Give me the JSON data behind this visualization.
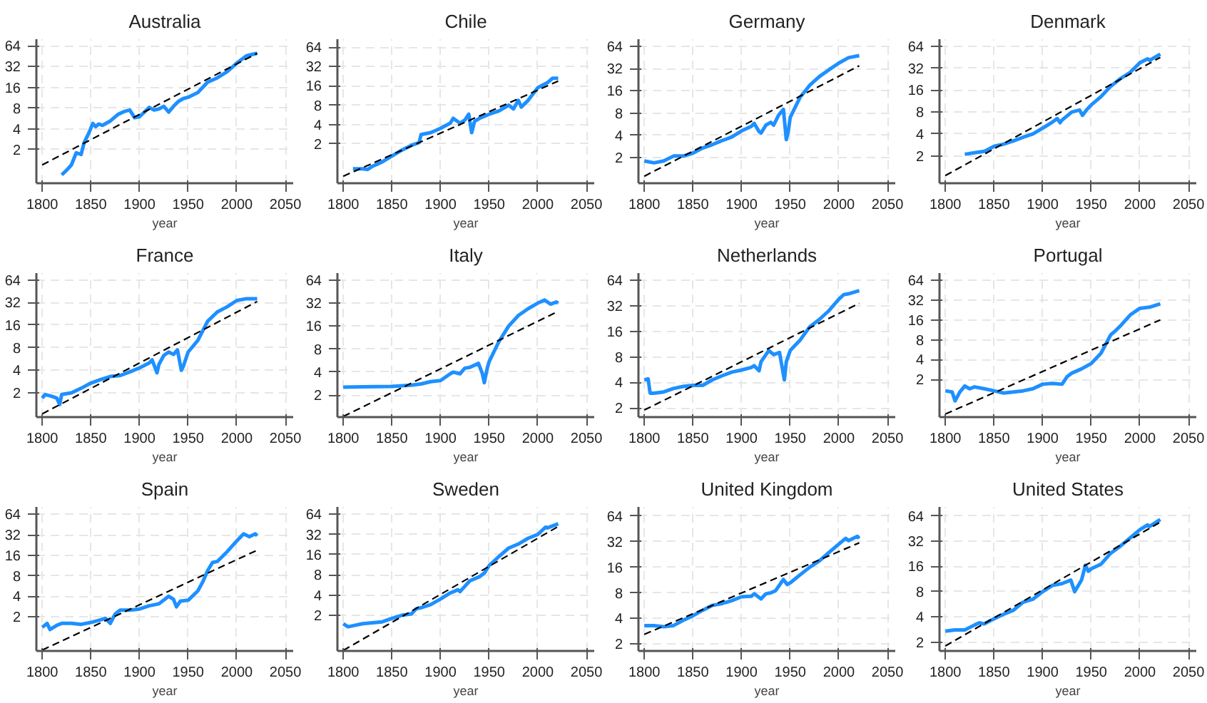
{
  "chart_data": [
    {
      "type": "line",
      "title": "Australia",
      "xlabel": "year",
      "xlim": [
        1794,
        2058
      ],
      "ylim": [
        0.65,
        80
      ],
      "xticks": [
        1800,
        1850,
        1900,
        1950,
        2000,
        2050
      ],
      "yticks": [
        2,
        4,
        8,
        16,
        32,
        64
      ],
      "log": "y",
      "grid": true,
      "series": [
        {
          "color": "#1e90ff",
          "x": [
            1820,
            1825,
            1830,
            1835,
            1840,
            1843,
            1848,
            1852,
            1855,
            1858,
            1862,
            1870,
            1878,
            1885,
            1890,
            1895,
            1900,
            1905,
            1910,
            1915,
            1920,
            1925,
            1930,
            1935,
            1940,
            1945,
            1950,
            1960,
            1970,
            1980,
            1990,
            2000,
            2010,
            2021
          ],
          "values": [
            0.86,
            1.0,
            1.2,
            1.8,
            1.7,
            2.5,
            3.5,
            4.8,
            4.3,
            4.7,
            4.5,
            5.2,
            6.5,
            7.2,
            7.5,
            5.8,
            6.0,
            7.0,
            8.2,
            7.5,
            7.8,
            8.5,
            7.0,
            8.5,
            10,
            11,
            11.5,
            13.5,
            19,
            22,
            27,
            36,
            46,
            50
          ]
        },
        {
          "color": "#000000",
          "line_style": "dashed",
          "x": [
            1800,
            2021
          ],
          "values": [
            1.2,
            50
          ]
        }
      ]
    },
    {
      "type": "line",
      "title": "Chile",
      "xlabel": "year",
      "xlim": [
        1794,
        2058
      ],
      "ylim": [
        0.49,
        85
      ],
      "xticks": [
        1800,
        1850,
        1900,
        1950,
        2000,
        2050
      ],
      "yticks": [
        2,
        4,
        8,
        16,
        32,
        64
      ],
      "log": "y",
      "grid": true,
      "series": [
        {
          "color": "#1e90ff",
          "x": [
            1810,
            1820,
            1825,
            1830,
            1840,
            1850,
            1860,
            1870,
            1878,
            1880,
            1890,
            1900,
            1910,
            1913,
            1920,
            1925,
            1929,
            1932,
            1935,
            1940,
            1950,
            1960,
            1970,
            1975,
            1980,
            1983,
            1990,
            2000,
            2010,
            2015,
            2021
          ],
          "values": [
            0.82,
            0.82,
            0.8,
            0.9,
            1.05,
            1.3,
            1.6,
            1.9,
            2.1,
            2.8,
            3.0,
            3.5,
            4.2,
            5.0,
            4.2,
            4.7,
            5.8,
            3.0,
            4.5,
            5.0,
            5.8,
            6.5,
            8.0,
            7.0,
            9.5,
            7.5,
            9.5,
            15,
            18,
            21,
            21
          ]
        },
        {
          "color": "#000000",
          "line_style": "dashed",
          "x": [
            1800,
            2021
          ],
          "values": [
            0.63,
            19
          ]
        }
      ]
    },
    {
      "type": "line",
      "title": "Germany",
      "xlabel": "year",
      "xlim": [
        1794,
        2058
      ],
      "ylim": [
        0.9,
        80
      ],
      "xticks": [
        1800,
        1850,
        1900,
        1950,
        2000,
        2050
      ],
      "yticks": [
        2,
        4,
        8,
        16,
        32,
        64
      ],
      "log": "y",
      "grid": true,
      "series": [
        {
          "color": "#1e90ff",
          "x": [
            1800,
            1810,
            1820,
            1830,
            1840,
            1850,
            1860,
            1870,
            1880,
            1890,
            1900,
            1910,
            1913,
            1918,
            1920,
            1925,
            1930,
            1933,
            1938,
            1943,
            1946,
            1948,
            1950,
            1960,
            1970,
            1980,
            1990,
            2000,
            2010,
            2021
          ],
          "values": [
            1.8,
            1.7,
            1.8,
            2.1,
            2.1,
            2.3,
            2.7,
            3.0,
            3.4,
            3.8,
            4.6,
            5.3,
            5.8,
            4.5,
            4.3,
            5.5,
            6.0,
            5.5,
            7.5,
            9.0,
            3.5,
            4.5,
            7.0,
            13,
            19,
            25,
            31,
            38,
            45,
            48
          ]
        },
        {
          "color": "#000000",
          "line_style": "dashed",
          "x": [
            1800,
            2021
          ],
          "values": [
            1.12,
            35
          ]
        }
      ]
    },
    {
      "type": "line",
      "title": "Denmark",
      "xlabel": "year",
      "xlim": [
        1794,
        2058
      ],
      "ylim": [
        0.84,
        80
      ],
      "xticks": [
        1800,
        1850,
        1900,
        1950,
        2000,
        2050
      ],
      "yticks": [
        2,
        4,
        8,
        16,
        32,
        64
      ],
      "log": "y",
      "grid": true,
      "series": [
        {
          "color": "#1e90ff",
          "x": [
            1820,
            1830,
            1840,
            1850,
            1860,
            1870,
            1880,
            1890,
            1900,
            1910,
            1915,
            1918,
            1920,
            1930,
            1938,
            1941,
            1945,
            1950,
            1960,
            1970,
            1980,
            1990,
            2000,
            2008,
            2010,
            2021
          ],
          "values": [
            2.1,
            2.2,
            2.3,
            2.7,
            2.9,
            3.2,
            3.6,
            4.0,
            4.8,
            5.8,
            6.5,
            5.7,
            6.2,
            8.0,
            8.5,
            7.2,
            8.5,
            10,
            13,
            18,
            23,
            28,
            38,
            43,
            41,
            50
          ]
        },
        {
          "color": "#000000",
          "line_style": "dashed",
          "x": [
            1800,
            2021
          ],
          "values": [
            1.07,
            45
          ]
        }
      ]
    },
    {
      "type": "line",
      "title": "France",
      "xlabel": "year",
      "xlim": [
        1794,
        2058
      ],
      "ylim": [
        0.95,
        79
      ],
      "xticks": [
        1800,
        1850,
        1900,
        1950,
        2000,
        2050
      ],
      "yticks": [
        2,
        4,
        8,
        16,
        32,
        64
      ],
      "log": "y",
      "grid": true,
      "series": [
        {
          "color": "#1e90ff",
          "x": [
            1800,
            1803,
            1810,
            1815,
            1818,
            1820,
            1830,
            1840,
            1850,
            1860,
            1870,
            1880,
            1890,
            1900,
            1910,
            1913,
            1918,
            1920,
            1925,
            1930,
            1935,
            1939,
            1943,
            1945,
            1950,
            1960,
            1970,
            1980,
            1990,
            2000,
            2010,
            2021
          ],
          "values": [
            1.7,
            1.9,
            1.8,
            1.7,
            1.4,
            1.9,
            2.0,
            2.3,
            2.7,
            3.0,
            3.3,
            3.4,
            3.8,
            4.3,
            5.0,
            5.5,
            3.7,
            4.8,
            6.3,
            7.0,
            6.5,
            7.5,
            4.0,
            4.5,
            7.0,
            10,
            18,
            24,
            28,
            34,
            36,
            36
          ]
        },
        {
          "color": "#000000",
          "line_style": "dashed",
          "x": [
            1800,
            2021
          ],
          "values": [
            1.05,
            33
          ]
        }
      ]
    },
    {
      "type": "line",
      "title": "Italy",
      "xlabel": "year",
      "xlim": [
        1794,
        2058
      ],
      "ylim": [
        1.03,
        79
      ],
      "xticks": [
        1800,
        1850,
        1900,
        1950,
        2000,
        2050
      ],
      "yticks": [
        2,
        4,
        8,
        16,
        32,
        64
      ],
      "log": "y",
      "grid": true,
      "series": [
        {
          "color": "#1e90ff",
          "x": [
            1800,
            1850,
            1870,
            1880,
            1890,
            1900,
            1910,
            1913,
            1920,
            1925,
            1930,
            1939,
            1943,
            1945,
            1948,
            1950,
            1960,
            1970,
            1980,
            1990,
            2000,
            2007,
            2013,
            2019,
            2021
          ],
          "values": [
            2.54,
            2.6,
            2.7,
            2.8,
            3.0,
            3.1,
            3.8,
            4.0,
            3.8,
            4.5,
            4.6,
            5.2,
            3.8,
            2.9,
            4.5,
            5.5,
            10,
            16,
            22,
            27,
            32,
            35,
            31,
            33,
            32
          ]
        },
        {
          "color": "#000000",
          "line_style": "dashed",
          "x": [
            1800,
            2021
          ],
          "values": [
            1.05,
            25
          ]
        }
      ]
    },
    {
      "type": "line",
      "title": "Netherlands",
      "xlabel": "year",
      "xlim": [
        1794,
        2058
      ],
      "ylim": [
        1.57,
        77
      ],
      "xticks": [
        1800,
        1850,
        1900,
        1950,
        2000,
        2050
      ],
      "yticks": [
        2,
        4,
        8,
        16,
        32,
        64
      ],
      "log": "y",
      "grid": true,
      "series": [
        {
          "color": "#1e90ff",
          "x": [
            1800,
            1804,
            1806,
            1810,
            1820,
            1830,
            1840,
            1850,
            1860,
            1870,
            1880,
            1890,
            1900,
            1910,
            1913,
            1918,
            1920,
            1928,
            1933,
            1939,
            1944,
            1946,
            1950,
            1960,
            1970,
            1980,
            1990,
            2000,
            2005,
            2010,
            2021
          ],
          "values": [
            4.3,
            4.4,
            3.0,
            3.0,
            3.1,
            3.4,
            3.6,
            3.7,
            3.7,
            4.3,
            4.8,
            5.3,
            5.6,
            6.0,
            6.3,
            5.5,
            7.0,
            9.5,
            8.5,
            9.0,
            4.3,
            7.0,
            9.5,
            12.5,
            18,
            22,
            28,
            38,
            43,
            44,
            48
          ]
        },
        {
          "color": "#000000",
          "line_style": "dashed",
          "x": [
            1800,
            2021
          ],
          "values": [
            1.9,
            34
          ]
        }
      ]
    },
    {
      "type": "line",
      "title": "Portugal",
      "xlabel": "year",
      "xlim": [
        1794,
        2058
      ],
      "ylim": [
        0.54,
        82
      ],
      "xticks": [
        1800,
        1850,
        1900,
        1950,
        2000,
        2050
      ],
      "yticks": [
        2,
        4,
        8,
        16,
        32,
        64
      ],
      "log": "y",
      "grid": true,
      "series": [
        {
          "color": "#1e90ff",
          "x": [
            1800,
            1807,
            1810,
            1815,
            1820,
            1825,
            1830,
            1840,
            1850,
            1860,
            1870,
            1880,
            1890,
            1900,
            1910,
            1920,
            1925,
            1930,
            1940,
            1950,
            1960,
            1970,
            1975,
            1980,
            1990,
            2000,
            2010,
            2021
          ],
          "values": [
            1.35,
            1.3,
            0.95,
            1.3,
            1.6,
            1.45,
            1.55,
            1.45,
            1.35,
            1.25,
            1.3,
            1.35,
            1.45,
            1.7,
            1.75,
            1.7,
            2.2,
            2.5,
            2.9,
            3.5,
            5.0,
            9.5,
            11,
            13,
            19,
            24,
            25,
            28
          ]
        },
        {
          "color": "#000000",
          "line_style": "dashed",
          "x": [
            1800,
            2021
          ],
          "values": [
            0.6,
            16
          ]
        }
      ]
    },
    {
      "type": "line",
      "title": "Spain",
      "xlabel": "year",
      "xlim": [
        1794,
        2058
      ],
      "ylim": [
        0.63,
        82
      ],
      "xticks": [
        1800,
        1850,
        1900,
        1950,
        2000,
        2050
      ],
      "yticks": [
        2,
        4,
        8,
        16,
        32,
        64
      ],
      "log": "y",
      "grid": true,
      "series": [
        {
          "color": "#1e90ff",
          "x": [
            1800,
            1805,
            1808,
            1815,
            1820,
            1830,
            1840,
            1850,
            1860,
            1865,
            1870,
            1875,
            1880,
            1890,
            1900,
            1910,
            1920,
            1930,
            1935,
            1938,
            1942,
            1950,
            1960,
            1965,
            1970,
            1975,
            1980,
            1990,
            2000,
            2007,
            2013,
            2019,
            2021
          ],
          "values": [
            1.4,
            1.6,
            1.3,
            1.5,
            1.6,
            1.6,
            1.55,
            1.65,
            1.8,
            1.9,
            1.6,
            2.2,
            2.5,
            2.5,
            2.6,
            2.9,
            3.1,
            4.0,
            3.6,
            2.8,
            3.4,
            3.5,
            4.8,
            6.5,
            9.5,
            12.5,
            13,
            18,
            26,
            33,
            30,
            33,
            31
          ]
        },
        {
          "color": "#000000",
          "line_style": "dashed",
          "x": [
            1800,
            2021
          ],
          "values": [
            0.65,
            19
          ]
        }
      ]
    },
    {
      "type": "line",
      "title": "Sweden",
      "xlabel": "year",
      "xlim": [
        1794,
        2058
      ],
      "ylim": [
        0.59,
        82
      ],
      "xticks": [
        1800,
        1850,
        1900,
        1950,
        2000,
        2050
      ],
      "yticks": [
        2,
        4,
        8,
        16,
        32,
        64
      ],
      "log": "y",
      "grid": true,
      "series": [
        {
          "color": "#1e90ff",
          "x": [
            1800,
            1805,
            1810,
            1820,
            1830,
            1840,
            1850,
            1860,
            1870,
            1875,
            1880,
            1890,
            1900,
            1910,
            1918,
            1920,
            1930,
            1940,
            1945,
            1950,
            1960,
            1970,
            1980,
            1990,
            2000,
            2008,
            2010,
            2021
          ],
          "values": [
            1.5,
            1.35,
            1.4,
            1.5,
            1.55,
            1.6,
            1.8,
            2.0,
            2.1,
            2.5,
            2.6,
            2.9,
            3.5,
            4.3,
            4.8,
            4.5,
            6.5,
            7.5,
            8.5,
            11,
            15,
            20,
            23,
            28,
            32,
            41,
            40,
            46
          ]
        },
        {
          "color": "#000000",
          "line_style": "dashed",
          "x": [
            1800,
            2021
          ],
          "values": [
            0.6,
            42
          ]
        }
      ]
    },
    {
      "type": "line",
      "title": "United Kingdom",
      "xlabel": "year",
      "xlim": [
        1794,
        2058
      ],
      "ylim": [
        1.66,
        82
      ],
      "xticks": [
        1800,
        1850,
        1900,
        1950,
        2000,
        2050
      ],
      "yticks": [
        2,
        4,
        8,
        16,
        32,
        64
      ],
      "log": "y",
      "grid": true,
      "series": [
        {
          "color": "#1e90ff",
          "x": [
            1800,
            1810,
            1820,
            1830,
            1840,
            1850,
            1860,
            1870,
            1880,
            1890,
            1900,
            1910,
            1913,
            1920,
            1925,
            1930,
            1935,
            1943,
            1947,
            1950,
            1960,
            1970,
            1980,
            1990,
            2000,
            2007,
            2010,
            2019,
            2021
          ],
          "values": [
            3.3,
            3.3,
            3.2,
            3.3,
            3.8,
            4.3,
            5.0,
            5.7,
            6.0,
            6.5,
            7.2,
            7.3,
            7.8,
            6.8,
            7.8,
            8.0,
            8.5,
            11.5,
            10,
            10.5,
            13,
            16,
            19,
            24,
            30,
            35,
            33,
            37,
            35
          ]
        },
        {
          "color": "#000000",
          "line_style": "dashed",
          "x": [
            1800,
            2021
          ],
          "values": [
            2.6,
            31
          ]
        }
      ]
    },
    {
      "type": "line",
      "title": "United States",
      "xlabel": "year",
      "xlim": [
        1794,
        2058
      ],
      "ylim": [
        1.57,
        82
      ],
      "xticks": [
        1800,
        1850,
        1900,
        1950,
        2000,
        2050
      ],
      "yticks": [
        2,
        4,
        8,
        16,
        32,
        64
      ],
      "log": "y",
      "grid": true,
      "series": [
        {
          "color": "#1e90ff",
          "x": [
            1800,
            1810,
            1820,
            1830,
            1835,
            1840,
            1850,
            1860,
            1870,
            1880,
            1890,
            1900,
            1910,
            1920,
            1929,
            1933,
            1940,
            1944,
            1947,
            1950,
            1960,
            1970,
            1980,
            1990,
            2000,
            2008,
            2010,
            2021
          ],
          "values": [
            2.7,
            2.8,
            2.8,
            3.2,
            3.4,
            3.3,
            3.8,
            4.3,
            4.8,
            6.0,
            6.5,
            8.0,
            9.5,
            10,
            11,
            8.0,
            11,
            16.5,
            14,
            15,
            17,
            23,
            28,
            35,
            44,
            50,
            48,
            58
          ]
        },
        {
          "color": "#000000",
          "line_style": "dashed",
          "x": [
            1800,
            2021
          ],
          "values": [
            1.8,
            54
          ]
        }
      ]
    }
  ]
}
